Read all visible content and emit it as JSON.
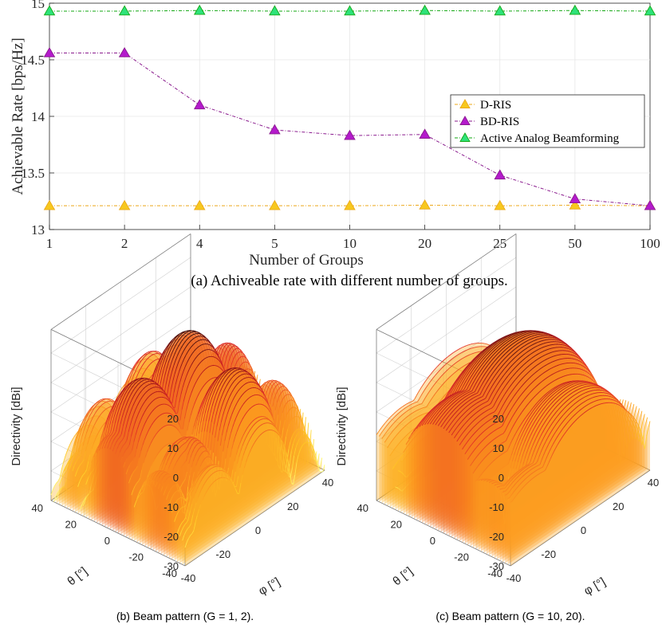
{
  "chart_data": [
    {
      "type": "line",
      "title": "",
      "caption": "(a) Achiveable rate with different number of groups.",
      "xlabel": "Number of Groups",
      "ylabel": "Achievable Rate [bps/Hz]",
      "categories": [
        "1",
        "2",
        "4",
        "5",
        "10",
        "20",
        "25",
        "50",
        "100"
      ],
      "ylim": [
        13,
        15
      ],
      "yticks": [
        "13",
        "13.5",
        "14",
        "14.5",
        "15"
      ],
      "grid": true,
      "legend_position": "right",
      "series": [
        {
          "name": "D-RIS",
          "color": "#ECA81A",
          "marker_fill": "#F7C81E",
          "values": [
            13.21,
            13.21,
            13.21,
            13.21,
            13.21,
            13.215,
            13.21,
            13.215,
            13.21
          ]
        },
        {
          "name": "BD-RIS",
          "color": "#8A1B8E",
          "marker_fill": "#B41ACC",
          "values": [
            14.56,
            14.56,
            14.1,
            13.88,
            13.83,
            13.84,
            13.48,
            13.27,
            13.21
          ]
        },
        {
          "name": "Active Analog Beamforming",
          "color": "#13A813",
          "marker_fill": "#2EE27A",
          "values": [
            14.93,
            14.93,
            14.935,
            14.93,
            14.93,
            14.935,
            14.93,
            14.935,
            14.93
          ]
        }
      ]
    },
    {
      "type": "surface",
      "caption": "(b) Beam pattern (G = 1, 2).",
      "zlabel": "Directivity [dBi]",
      "xlabel": "φ [°]",
      "ylabel": "θ [°]",
      "zticks": [
        "20",
        "10",
        "0",
        "-10",
        "-20",
        "-30"
      ],
      "theta_ticks": [
        "40",
        "20",
        "0",
        "-20",
        "-40"
      ],
      "phi_ticks": [
        "-40",
        "-20",
        "0",
        "20",
        "40"
      ],
      "zlim": [
        -30,
        20
      ],
      "peak_dbi": 18,
      "colormap": "hot"
    },
    {
      "type": "surface",
      "caption": "(c) Beam pattern (G = 10, 20).",
      "zlabel": "Directivity [dBi]",
      "xlabel": "φ [°]",
      "ylabel": "θ [°]",
      "zticks": [
        "20",
        "10",
        "0",
        "-10",
        "-20",
        "-30"
      ],
      "theta_ticks": [
        "40",
        "20",
        "0",
        "-20",
        "-40"
      ],
      "phi_ticks": [
        "-40",
        "-20",
        "0",
        "20",
        "40"
      ],
      "zlim": [
        -30,
        20
      ],
      "peak_dbi": 16,
      "colormap": "hot"
    }
  ]
}
